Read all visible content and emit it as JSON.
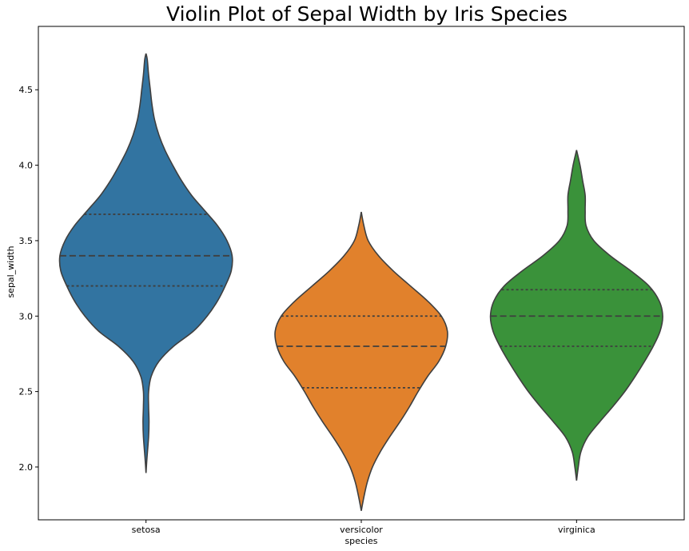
{
  "chart_data": {
    "type": "violin",
    "title": "Violin Plot of Sepal Width by Iris Species",
    "xlabel": "species",
    "ylabel": "sepal_width",
    "ylim": [
      1.65,
      4.92
    ],
    "yticks": [
      "2.0",
      "2.5",
      "3.0",
      "3.5",
      "4.0",
      "4.5"
    ],
    "grid": false,
    "categories": [
      "setosa",
      "versicolor",
      "virginica"
    ],
    "series": [
      {
        "category": "setosa",
        "color": "#3274a1",
        "min": 1.96,
        "max": 4.74,
        "q1": 3.2,
        "median": 3.4,
        "q3": 3.675,
        "profile": [
          [
            1.96,
            0.0
          ],
          [
            2.05,
            0.01
          ],
          [
            2.2,
            0.03
          ],
          [
            2.3,
            0.035
          ],
          [
            2.4,
            0.03
          ],
          [
            2.5,
            0.03
          ],
          [
            2.6,
            0.06
          ],
          [
            2.7,
            0.15
          ],
          [
            2.8,
            0.32
          ],
          [
            2.9,
            0.55
          ],
          [
            3.0,
            0.71
          ],
          [
            3.1,
            0.83
          ],
          [
            3.2,
            0.92
          ],
          [
            3.3,
            0.99
          ],
          [
            3.4,
            1.0
          ],
          [
            3.5,
            0.94
          ],
          [
            3.6,
            0.83
          ],
          [
            3.7,
            0.68
          ],
          [
            3.8,
            0.53
          ],
          [
            3.9,
            0.41
          ],
          [
            4.0,
            0.31
          ],
          [
            4.1,
            0.22
          ],
          [
            4.2,
            0.15
          ],
          [
            4.3,
            0.1
          ],
          [
            4.4,
            0.07
          ],
          [
            4.5,
            0.05
          ],
          [
            4.6,
            0.03
          ],
          [
            4.7,
            0.015
          ],
          [
            4.74,
            0.0
          ]
        ]
      },
      {
        "category": "versicolor",
        "color": "#e1812c",
        "min": 1.71,
        "max": 3.69,
        "q1": 2.525,
        "median": 2.8,
        "q3": 3.0,
        "profile": [
          [
            1.71,
            0.0
          ],
          [
            1.8,
            0.03
          ],
          [
            1.9,
            0.07
          ],
          [
            2.0,
            0.13
          ],
          [
            2.1,
            0.22
          ],
          [
            2.2,
            0.33
          ],
          [
            2.3,
            0.45
          ],
          [
            2.4,
            0.56
          ],
          [
            2.5,
            0.66
          ],
          [
            2.6,
            0.77
          ],
          [
            2.7,
            0.9
          ],
          [
            2.8,
            0.98
          ],
          [
            2.9,
            1.0
          ],
          [
            3.0,
            0.93
          ],
          [
            3.1,
            0.77
          ],
          [
            3.2,
            0.57
          ],
          [
            3.3,
            0.37
          ],
          [
            3.4,
            0.2
          ],
          [
            3.5,
            0.08
          ],
          [
            3.6,
            0.03
          ],
          [
            3.69,
            0.0
          ]
        ]
      },
      {
        "category": "virginica",
        "color": "#3a923a",
        "min": 1.91,
        "max": 4.1,
        "q1": 2.8,
        "median": 3.0,
        "q3": 3.175,
        "profile": [
          [
            1.91,
            0.0
          ],
          [
            2.0,
            0.02
          ],
          [
            2.1,
            0.05
          ],
          [
            2.2,
            0.13
          ],
          [
            2.3,
            0.27
          ],
          [
            2.4,
            0.42
          ],
          [
            2.5,
            0.56
          ],
          [
            2.6,
            0.68
          ],
          [
            2.7,
            0.79
          ],
          [
            2.8,
            0.89
          ],
          [
            2.9,
            0.97
          ],
          [
            3.0,
            1.0
          ],
          [
            3.1,
            0.96
          ],
          [
            3.2,
            0.84
          ],
          [
            3.3,
            0.63
          ],
          [
            3.4,
            0.39
          ],
          [
            3.5,
            0.2
          ],
          [
            3.6,
            0.11
          ],
          [
            3.7,
            0.1
          ],
          [
            3.8,
            0.1
          ],
          [
            3.9,
            0.07
          ],
          [
            4.0,
            0.04
          ],
          [
            4.1,
            0.0
          ]
        ]
      }
    ]
  }
}
